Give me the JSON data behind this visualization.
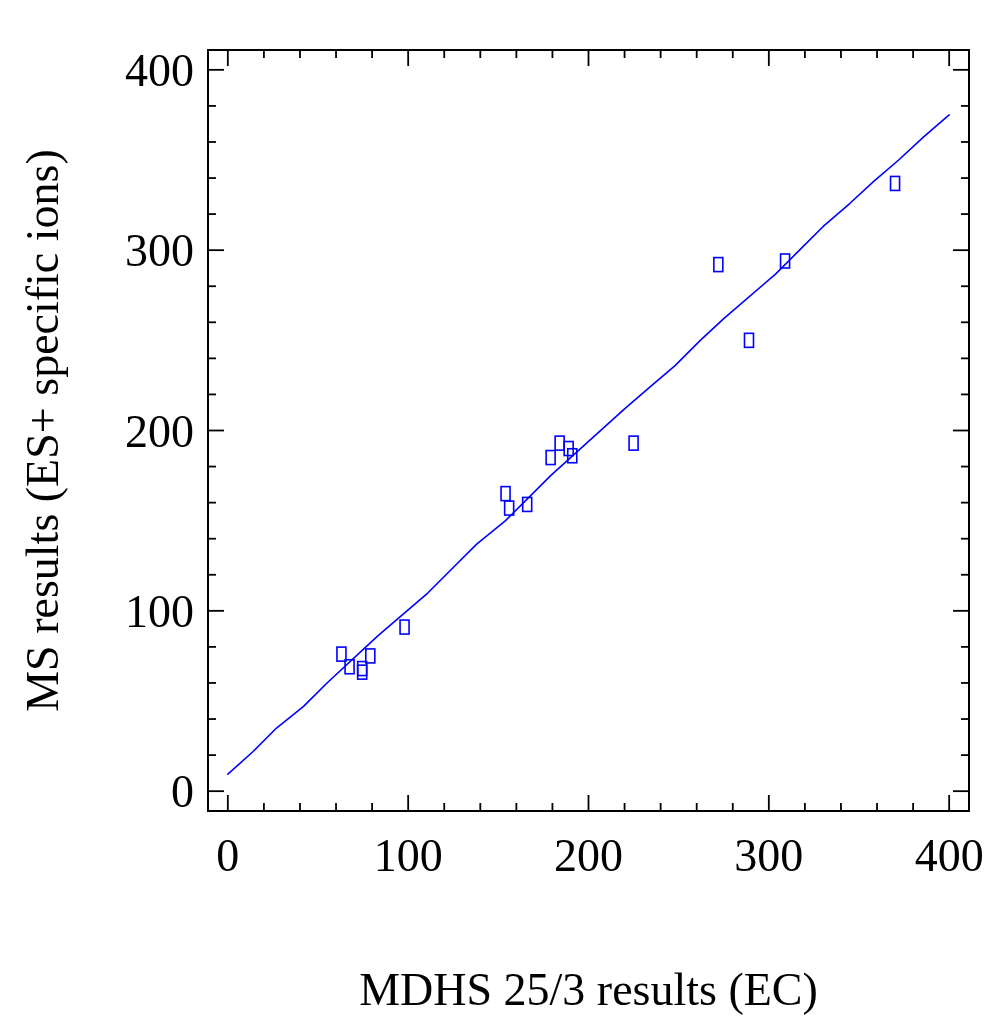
{
  "chart_data": {
    "type": "scatter",
    "xlabel": "MDHS 25/3 results (EC)",
    "ylabel": "MS results (ES+ specific ions)",
    "xlim": [
      -11,
      411
    ],
    "ylim": [
      -11,
      411
    ],
    "xticks": [
      0,
      {
        "value": 20,
        "label": null
      },
      {
        "value": 40,
        "label": null
      },
      {
        "value": 60,
        "label": null
      },
      {
        "value": 80,
        "label": null
      },
      100,
      {
        "value": 120,
        "label": null
      },
      {
        "value": 140,
        "label": null
      },
      {
        "value": 160,
        "label": null
      },
      {
        "value": 180,
        "label": null
      },
      200,
      {
        "value": 220,
        "label": null
      },
      {
        "value": 240,
        "label": null
      },
      {
        "value": 260,
        "label": null
      },
      {
        "value": 280,
        "label": null
      },
      300,
      {
        "value": 320,
        "label": null
      },
      {
        "value": 340,
        "label": null
      },
      {
        "value": 360,
        "label": null
      },
      {
        "value": 380,
        "label": null
      },
      400
    ],
    "yticks": [
      0,
      {
        "value": 20,
        "label": null
      },
      {
        "value": 40,
        "label": null
      },
      {
        "value": 60,
        "label": null
      },
      {
        "value": 80,
        "label": null
      },
      100,
      {
        "value": 120,
        "label": null
      },
      {
        "value": 140,
        "label": null
      },
      {
        "value": 160,
        "label": null
      },
      {
        "value": 180,
        "label": null
      },
      200,
      {
        "value": 220,
        "label": null
      },
      {
        "value": 240,
        "label": null
      },
      {
        "value": 260,
        "label": null
      },
      {
        "value": 280,
        "label": null
      },
      300,
      {
        "value": 320,
        "label": null
      },
      {
        "value": 340,
        "label": null
      },
      {
        "value": 360,
        "label": null
      },
      {
        "value": 380,
        "label": null
      },
      400
    ],
    "grid": false,
    "series": [
      {
        "color": "#0000ff",
        "marker": "square",
        "x": [
          63,
          67.5,
          74.5,
          74.5,
          79,
          98,
          154,
          156,
          166,
          179,
          184,
          189,
          191,
          225,
          272,
          289,
          309,
          370
        ],
        "values": [
          76,
          69,
          68,
          66,
          75,
          91,
          165,
          157,
          159,
          185,
          193,
          190,
          186,
          193,
          292,
          250,
          294,
          337
        ]
      },
      {
        "type": "line",
        "color": "#0000ff",
        "marker": "none",
        "line_style": "solid",
        "x": [
          0,
          14,
          27,
          42,
          55,
          83,
          111,
          125,
          138,
          154,
          179,
          220,
          234,
          248,
          262,
          275,
          304,
          317,
          330,
          345,
          358,
          372,
          386,
          400
        ],
        "values": [
          9.4,
          22,
          35,
          47,
          60,
          86,
          110,
          124,
          137,
          150,
          175,
          212,
          224,
          236,
          250,
          262,
          287,
          300,
          313,
          326,
          338,
          350,
          363,
          375
        ]
      }
    ]
  }
}
